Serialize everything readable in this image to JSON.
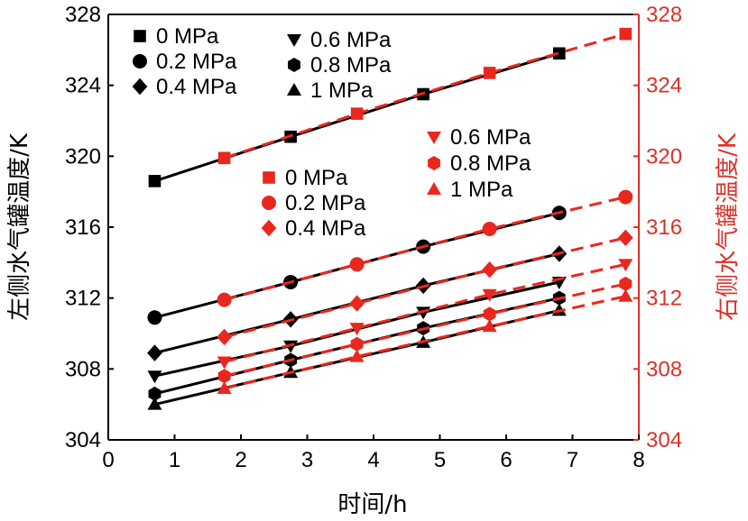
{
  "chart_data": {
    "type": "line",
    "xlabel": "时间/h",
    "ylabel_left": "左侧水气罐温度/K",
    "ylabel_right": "右侧水气罐温度/K",
    "xlim": [
      0,
      8
    ],
    "ylim": [
      304,
      328
    ],
    "x_ticks": [
      "0",
      "1",
      "2",
      "3",
      "4",
      "5",
      "6",
      "7",
      "8"
    ],
    "y_ticks": [
      "304",
      "308",
      "312",
      "316",
      "320",
      "324",
      "328"
    ],
    "colors": {
      "left": "#000000",
      "right": "#e8281f",
      "axis_right": "#d9322a"
    },
    "series": [
      {
        "name": "0 MPa",
        "axis": "left",
        "marker": "square",
        "x": [
          0.7,
          2.75,
          4.75,
          6.8
        ],
        "y": [
          318.6,
          321.1,
          323.5,
          325.8
        ]
      },
      {
        "name": "0.2 MPa",
        "axis": "left",
        "marker": "circle",
        "x": [
          0.7,
          2.75,
          4.75,
          6.8
        ],
        "y": [
          310.9,
          312.9,
          314.9,
          316.8
        ]
      },
      {
        "name": "0.4 MPa",
        "axis": "left",
        "marker": "diamond",
        "x": [
          0.7,
          2.75,
          4.75,
          6.8
        ],
        "y": [
          308.9,
          310.8,
          312.7,
          314.5
        ]
      },
      {
        "name": "0.6 MPa",
        "axis": "left",
        "marker": "triangle-down",
        "x": [
          0.7,
          2.75,
          4.75,
          6.8
        ],
        "y": [
          307.6,
          309.3,
          311.2,
          312.9
        ]
      },
      {
        "name": "0.8 MPa",
        "axis": "left",
        "marker": "hexagon",
        "x": [
          0.7,
          2.75,
          4.75,
          6.8
        ],
        "y": [
          306.6,
          308.5,
          310.3,
          312.0
        ]
      },
      {
        "name": "1 MPa",
        "axis": "left",
        "marker": "triangle-up",
        "x": [
          0.7,
          2.75,
          4.75,
          6.8
        ],
        "y": [
          306.0,
          307.8,
          309.5,
          311.3
        ]
      },
      {
        "name": "0 MPa",
        "axis": "right",
        "marker": "square",
        "x": [
          1.75,
          3.75,
          5.75,
          7.8
        ],
        "y": [
          319.9,
          322.4,
          324.7,
          326.9
        ]
      },
      {
        "name": "0.2 MPa",
        "axis": "right",
        "marker": "circle",
        "x": [
          1.75,
          3.75,
          5.75,
          7.8
        ],
        "y": [
          311.9,
          313.9,
          315.9,
          317.7
        ]
      },
      {
        "name": "0.4 MPa",
        "axis": "right",
        "marker": "diamond",
        "x": [
          1.75,
          3.75,
          5.75,
          7.8
        ],
        "y": [
          309.8,
          311.7,
          313.6,
          315.4
        ]
      },
      {
        "name": "0.6 MPa",
        "axis": "right",
        "marker": "triangle-down",
        "x": [
          1.75,
          3.75,
          5.75,
          7.8
        ],
        "y": [
          308.4,
          310.3,
          312.2,
          313.9
        ]
      },
      {
        "name": "0.8 MPa",
        "axis": "right",
        "marker": "hexagon",
        "x": [
          1.75,
          3.75,
          5.75,
          7.8
        ],
        "y": [
          307.6,
          309.4,
          311.1,
          312.8
        ]
      },
      {
        "name": "1 MPa",
        "axis": "right",
        "marker": "triangle-up",
        "x": [
          1.75,
          3.75,
          5.75,
          7.8
        ],
        "y": [
          306.9,
          308.7,
          310.4,
          312.1
        ]
      }
    ],
    "legends": [
      {
        "axis": "left",
        "placement": "top-left",
        "items": [
          "0 MPa",
          "0.2 MPa",
          "0.4 MPa"
        ],
        "markers": [
          "square",
          "circle",
          "diamond"
        ]
      },
      {
        "axis": "left",
        "placement": "top-center",
        "items": [
          "0.6 MPa",
          "0.8 MPa",
          "1 MPa"
        ],
        "markers": [
          "triangle-down",
          "hexagon",
          "triangle-up"
        ]
      },
      {
        "axis": "right",
        "placement": "center",
        "items": [
          "0 MPa",
          "0.2 MPa",
          "0.4 MPa"
        ],
        "markers": [
          "square",
          "circle",
          "diamond"
        ]
      },
      {
        "axis": "right",
        "placement": "center-right",
        "items": [
          "0.6 MPa",
          "0.8 MPa",
          "1 MPa"
        ],
        "markers": [
          "triangle-down",
          "hexagon",
          "triangle-up"
        ]
      }
    ]
  }
}
